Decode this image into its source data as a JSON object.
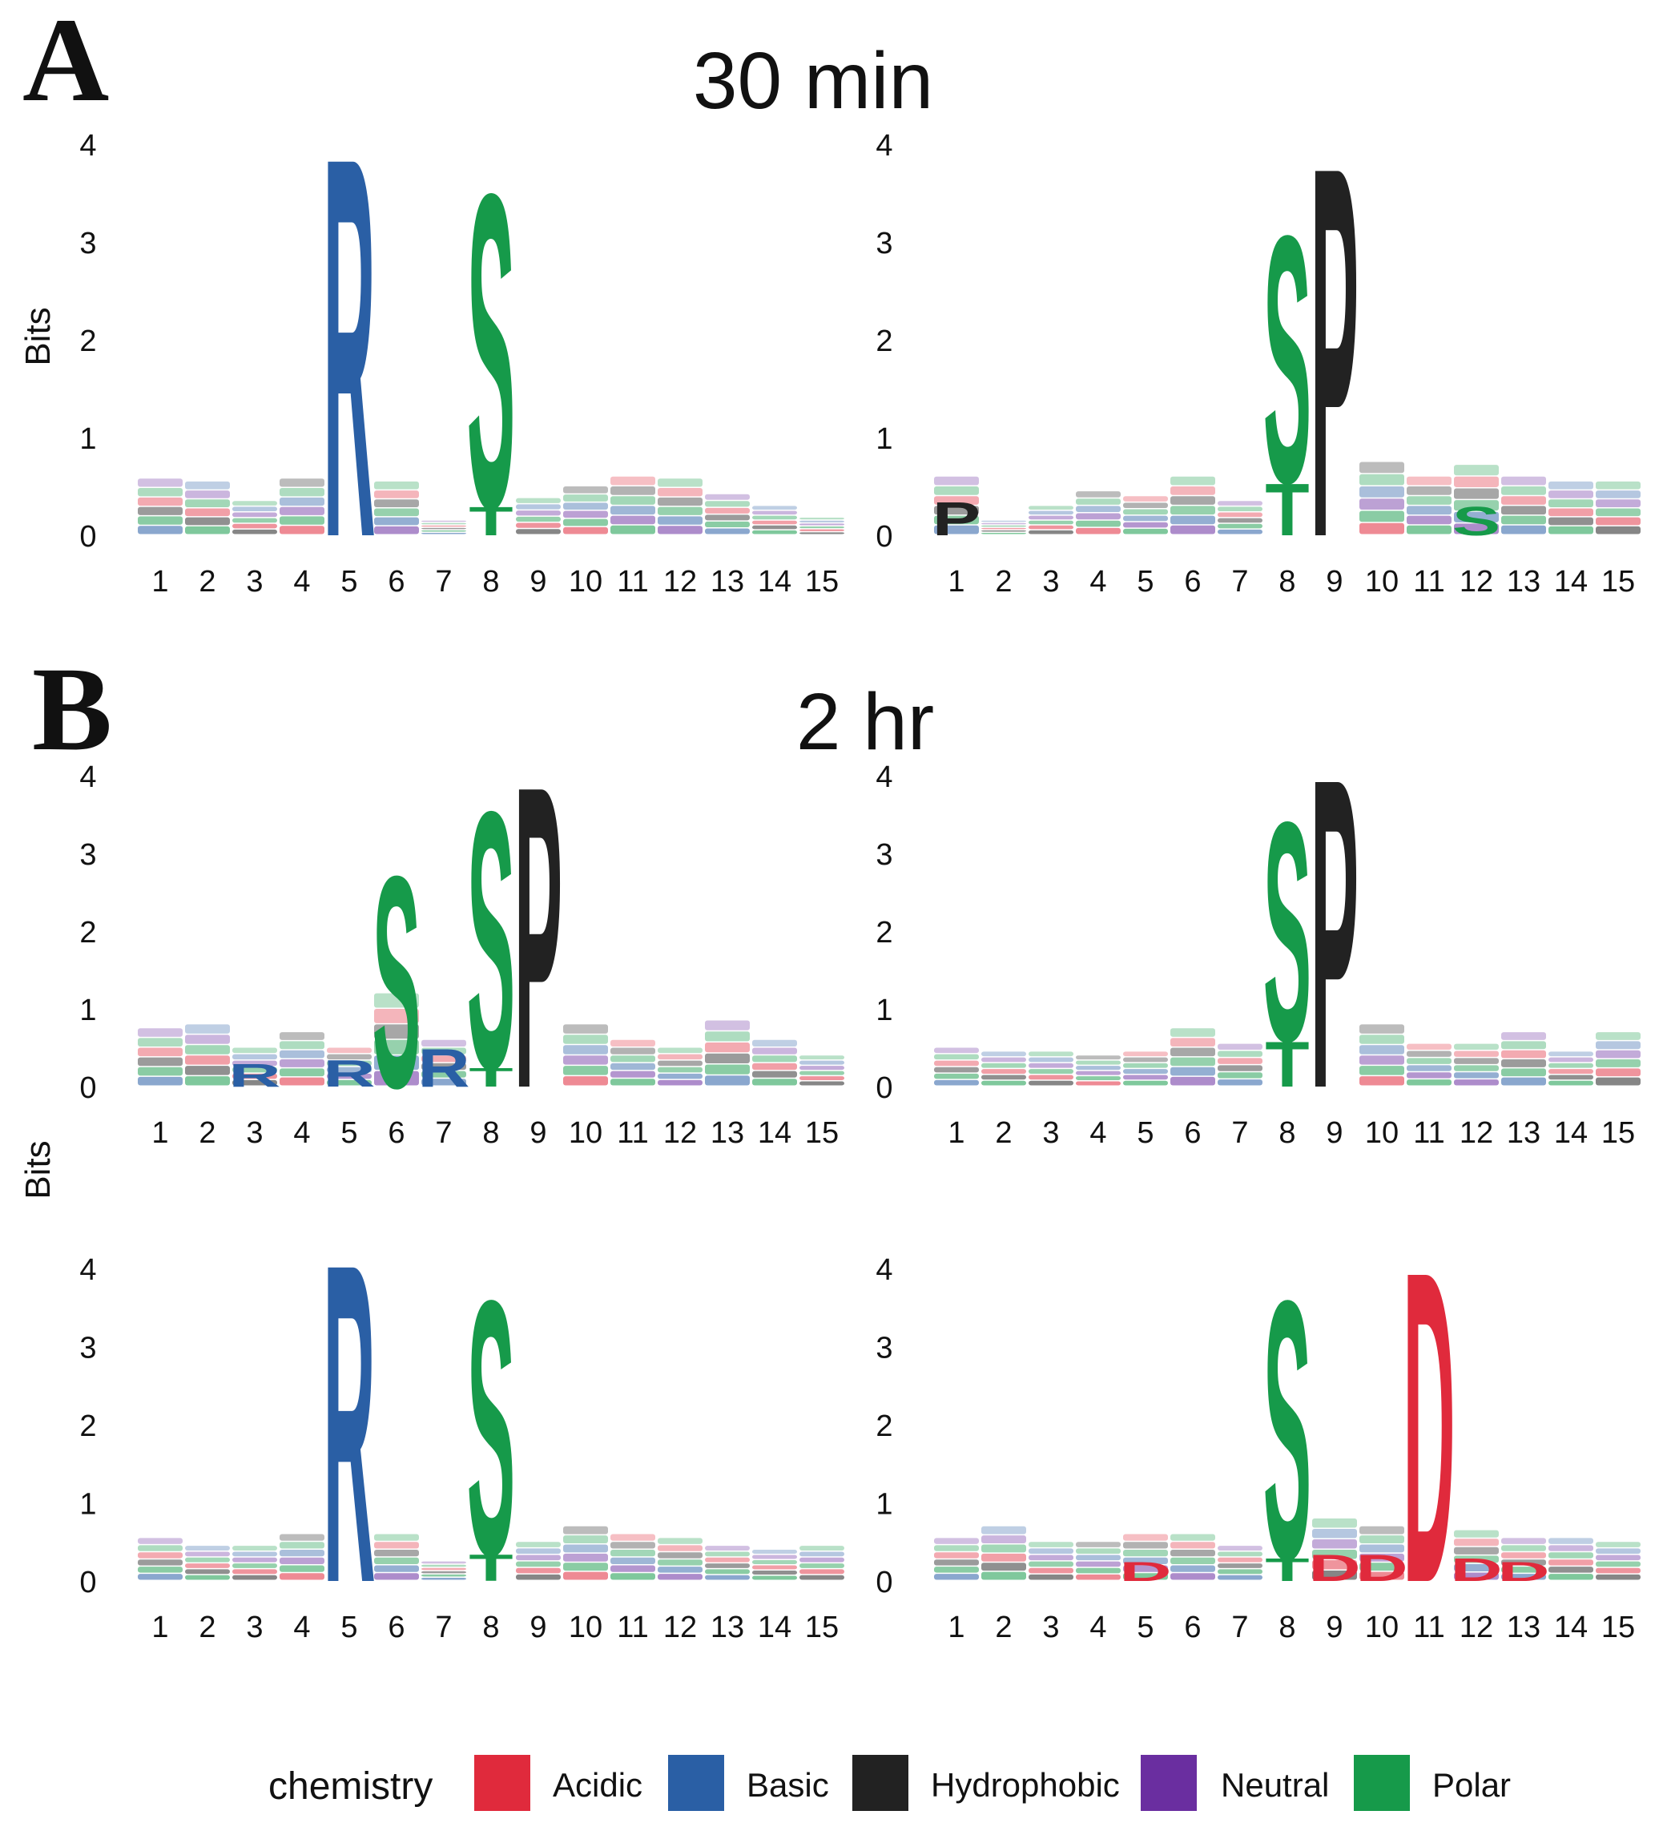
{
  "panels": [
    {
      "letter": "A",
      "title": "30 min"
    },
    {
      "letter": "B",
      "title": "2 hr"
    }
  ],
  "y_axis_label": "Bits",
  "colors": {
    "Acidic": "#e02a3c",
    "Basic": "#2a5fa5",
    "Hydrophobic": "#222222",
    "Neutral": "#6a2ea0",
    "Polar": "#169a4a"
  },
  "legend": {
    "title": "chemistry",
    "items": [
      "Acidic",
      "Basic",
      "Hydrophobic",
      "Neutral",
      "Polar"
    ]
  },
  "chart_data": [
    {
      "type": "sequence-logo",
      "panel": "A",
      "id": "a-left",
      "positions": [
        1,
        2,
        3,
        4,
        5,
        6,
        7,
        8,
        9,
        10,
        11,
        12,
        13,
        14,
        15
      ],
      "yticks": [
        0,
        1,
        2,
        3,
        4
      ],
      "ylim": [
        0,
        4
      ],
      "major": [
        {
          "position": 5,
          "letter": "R",
          "bits": 4.0,
          "chemistry": "Basic"
        },
        {
          "position": 8,
          "letter": "S",
          "bits": 3.3,
          "chemistry": "Polar"
        },
        {
          "position": 8,
          "letter": "T",
          "bits": 0.3,
          "chemistry": "Polar"
        }
      ],
      "background": [
        0.58,
        0.55,
        0.35,
        0.58,
        0,
        0.55,
        0.15,
        0,
        0.38,
        0.5,
        0.6,
        0.58,
        0.42,
        0.3,
        0.18
      ]
    },
    {
      "type": "sequence-logo",
      "panel": "A",
      "id": "a-right",
      "positions": [
        1,
        2,
        3,
        4,
        5,
        6,
        7,
        8,
        9,
        10,
        11,
        12,
        13,
        14,
        15
      ],
      "yticks": [
        0,
        1,
        2,
        3,
        4
      ],
      "ylim": [
        0,
        4
      ],
      "major": [
        {
          "position": 1,
          "letter": "P",
          "bits": 0.35,
          "chemistry": "Hydrophobic"
        },
        {
          "position": 8,
          "letter": "S",
          "bits": 2.6,
          "chemistry": "Polar"
        },
        {
          "position": 8,
          "letter": "T",
          "bits": 0.55,
          "chemistry": "Polar"
        },
        {
          "position": 9,
          "letter": "P",
          "bits": 3.9,
          "chemistry": "Hydrophobic"
        },
        {
          "position": 12,
          "letter": "S",
          "bits": 0.3,
          "chemistry": "Polar"
        }
      ],
      "background": [
        0.6,
        0.15,
        0.3,
        0.45,
        0.4,
        0.6,
        0.35,
        0,
        0,
        0.75,
        0.6,
        0.72,
        0.6,
        0.55,
        0.55
      ]
    },
    {
      "type": "sequence-logo",
      "panel": "B",
      "id": "b-top-left",
      "positions": [
        1,
        2,
        3,
        4,
        5,
        6,
        7,
        8,
        9,
        10,
        11,
        12,
        13,
        14,
        15
      ],
      "yticks": [
        0,
        1,
        2,
        3,
        4
      ],
      "ylim": [
        0,
        4
      ],
      "major": [
        {
          "position": 3,
          "letter": "R",
          "bits": 0.3,
          "chemistry": "Basic"
        },
        {
          "position": 5,
          "letter": "R",
          "bits": 0.35,
          "chemistry": "Basic"
        },
        {
          "position": 6,
          "letter": "S",
          "bits": 2.8,
          "chemistry": "Polar"
        },
        {
          "position": 7,
          "letter": "R",
          "bits": 0.5,
          "chemistry": "Basic"
        },
        {
          "position": 8,
          "letter": "S",
          "bits": 3.4,
          "chemistry": "Polar"
        },
        {
          "position": 8,
          "letter": "T",
          "bits": 0.25,
          "chemistry": "Polar"
        },
        {
          "position": 9,
          "letter": "P",
          "bits": 4.0,
          "chemistry": "Hydrophobic"
        }
      ],
      "background": [
        0.75,
        0.8,
        0.5,
        0.7,
        0.5,
        1.2,
        0.6,
        0,
        0,
        0.8,
        0.6,
        0.5,
        0.85,
        0.6,
        0.4
      ]
    },
    {
      "type": "sequence-logo",
      "panel": "B",
      "id": "b-top-right",
      "positions": [
        1,
        2,
        3,
        4,
        5,
        6,
        7,
        8,
        9,
        10,
        11,
        12,
        13,
        14,
        15
      ],
      "yticks": [
        0,
        1,
        2,
        3,
        4
      ],
      "ylim": [
        0,
        4
      ],
      "major": [
        {
          "position": 8,
          "letter": "S",
          "bits": 2.9,
          "chemistry": "Polar"
        },
        {
          "position": 8,
          "letter": "T",
          "bits": 0.6,
          "chemistry": "Polar"
        },
        {
          "position": 9,
          "letter": "P",
          "bits": 4.1,
          "chemistry": "Hydrophobic"
        }
      ],
      "background": [
        0.5,
        0.45,
        0.45,
        0.4,
        0.45,
        0.75,
        0.55,
        0,
        0,
        0.8,
        0.55,
        0.55,
        0.7,
        0.45,
        0.7
      ]
    },
    {
      "type": "sequence-logo",
      "panel": "B",
      "id": "b-bottom-left",
      "positions": [
        1,
        2,
        3,
        4,
        5,
        6,
        7,
        8,
        9,
        10,
        11,
        12,
        13,
        14,
        15
      ],
      "yticks": [
        0,
        1,
        2,
        3,
        4
      ],
      "ylim": [
        0,
        4
      ],
      "major": [
        {
          "position": 5,
          "letter": "R",
          "bits": 4.2,
          "chemistry": "Basic"
        },
        {
          "position": 8,
          "letter": "S",
          "bits": 3.35,
          "chemistry": "Polar"
        },
        {
          "position": 8,
          "letter": "T",
          "bits": 0.35,
          "chemistry": "Polar"
        }
      ],
      "background": [
        0.55,
        0.45,
        0.45,
        0.6,
        0,
        0.6,
        0.25,
        0,
        0.5,
        0.7,
        0.6,
        0.55,
        0.45,
        0.4,
        0.45
      ]
    },
    {
      "type": "sequence-logo",
      "panel": "B",
      "id": "b-bottom-right",
      "positions": [
        1,
        2,
        3,
        4,
        5,
        6,
        7,
        8,
        9,
        10,
        11,
        12,
        13,
        14,
        15
      ],
      "yticks": [
        0,
        1,
        2,
        3,
        4
      ],
      "ylim": [
        0,
        4
      ],
      "major": [
        {
          "position": 5,
          "letter": "D",
          "bits": 0.25,
          "chemistry": "Acidic"
        },
        {
          "position": 8,
          "letter": "S",
          "bits": 3.4,
          "chemistry": "Polar"
        },
        {
          "position": 8,
          "letter": "T",
          "bits": 0.3,
          "chemistry": "Polar"
        },
        {
          "position": 9,
          "letter": "D",
          "bits": 0.35,
          "chemistry": "Acidic"
        },
        {
          "position": 10,
          "letter": "D",
          "bits": 0.35,
          "chemistry": "Acidic"
        },
        {
          "position": 11,
          "letter": "D",
          "bits": 4.1,
          "chemistry": "Acidic"
        },
        {
          "position": 12,
          "letter": "D",
          "bits": 0.3,
          "chemistry": "Acidic"
        },
        {
          "position": 13,
          "letter": "D",
          "bits": 0.25,
          "chemistry": "Acidic"
        }
      ],
      "background": [
        0.55,
        0.7,
        0.5,
        0.5,
        0.6,
        0.6,
        0.45,
        0,
        0.8,
        0.7,
        0,
        0.65,
        0.55,
        0.55,
        0.5
      ]
    }
  ]
}
